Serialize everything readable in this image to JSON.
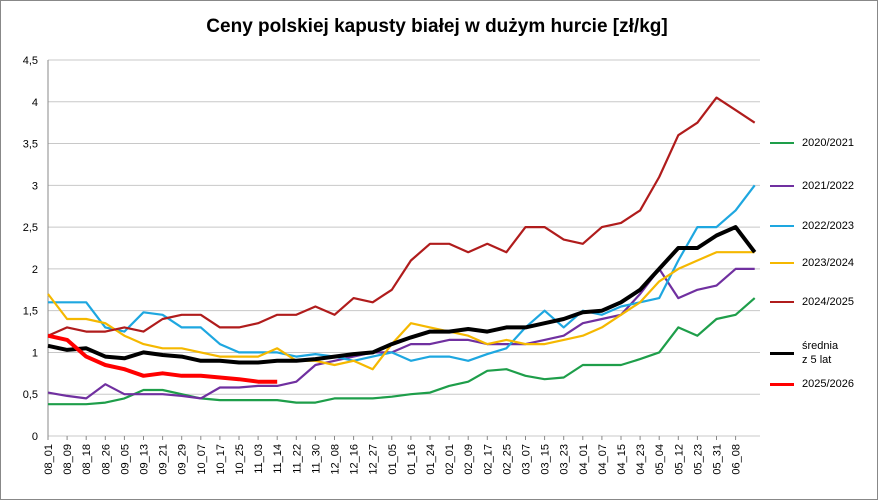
{
  "chart_data": {
    "type": "line",
    "title": "Ceny polskiej kapusty białej w dużym hurcie [zł/kg]",
    "categories": [
      "08_01",
      "08_09",
      "08_18",
      "08_26",
      "09_05",
      "09_13",
      "09_21",
      "09_29",
      "10_07",
      "10_17",
      "10_25",
      "11_03",
      "11_14",
      "11_22",
      "11_30",
      "12_08",
      "12_16",
      "12_27",
      "01_05",
      "01_16",
      "01_24",
      "02_01",
      "02_09",
      "02_17",
      "02_25",
      "03_07",
      "03_15",
      "03_23",
      "04_01",
      "04_07",
      "04_15",
      "04_23",
      "05_04",
      "05_12",
      "05_23",
      "05_31",
      "06_08",
      null
    ],
    "ylim": [
      0,
      4.5
    ],
    "yticks": [
      0,
      {
        "value": 0.5,
        "label": "0,5"
      },
      1,
      {
        "value": 1.5,
        "label": "1,5"
      },
      2,
      {
        "value": 2.5,
        "label": "2,5"
      },
      3,
      {
        "value": 3.5,
        "label": "3,5"
      },
      4,
      {
        "value": 4.5,
        "label": "4,5"
      }
    ],
    "grid": true,
    "series": [
      {
        "name": "2020/2021",
        "color": "#1e9e4a",
        "values": [
          0.38,
          0.38,
          0.38,
          0.4,
          0.45,
          0.55,
          0.55,
          0.5,
          0.45,
          0.43,
          0.43,
          0.43,
          0.43,
          0.4,
          0.4,
          0.45,
          0.45,
          0.45,
          0.47,
          0.5,
          0.52,
          0.6,
          0.65,
          0.78,
          0.8,
          0.72,
          0.68,
          0.7,
          0.85,
          0.85,
          0.85,
          0.92,
          1.0,
          1.3,
          1.2,
          1.4,
          1.45,
          1.65
        ]
      },
      {
        "name": "2021/2022",
        "color": "#7030a0",
        "values": [
          0.52,
          0.48,
          0.45,
          0.62,
          0.5,
          0.5,
          0.5,
          0.48,
          0.45,
          0.58,
          0.58,
          0.6,
          0.6,
          0.65,
          0.85,
          0.9,
          0.95,
          1.0,
          1.0,
          1.1,
          1.1,
          1.15,
          1.15,
          1.1,
          1.1,
          1.1,
          1.15,
          1.2,
          1.35,
          1.4,
          1.45,
          1.7,
          2.0,
          1.65,
          1.75,
          1.8,
          2.0,
          2.0
        ]
      },
      {
        "name": "2022/2023",
        "color": "#1ea7e0",
        "values": [
          1.6,
          1.6,
          1.6,
          1.3,
          1.25,
          1.48,
          1.45,
          1.3,
          1.3,
          1.1,
          1.0,
          1.0,
          1.0,
          0.95,
          0.98,
          0.95,
          0.9,
          0.95,
          1.0,
          0.9,
          0.95,
          0.95,
          0.9,
          0.98,
          1.05,
          1.3,
          1.5,
          1.3,
          1.5,
          1.45,
          1.55,
          1.6,
          1.65,
          2.1,
          2.5,
          2.5,
          2.7,
          3.0
        ]
      },
      {
        "name": "2023/2024",
        "color": "#f5b800",
        "values": [
          1.7,
          1.4,
          1.4,
          1.35,
          1.2,
          1.1,
          1.05,
          1.05,
          1.0,
          0.95,
          0.95,
          0.95,
          1.05,
          0.9,
          0.9,
          0.85,
          0.9,
          0.8,
          1.1,
          1.35,
          1.3,
          1.25,
          1.2,
          1.1,
          1.15,
          1.1,
          1.1,
          1.15,
          1.2,
          1.3,
          1.45,
          1.6,
          1.85,
          2.0,
          2.1,
          2.2,
          2.2,
          2.2
        ]
      },
      {
        "name": "2024/2025",
        "color": "#b01c1c",
        "values": [
          1.2,
          1.3,
          1.25,
          1.25,
          1.3,
          1.25,
          1.4,
          1.45,
          1.45,
          1.3,
          1.3,
          1.35,
          1.45,
          1.45,
          1.55,
          1.45,
          1.65,
          1.6,
          1.75,
          2.1,
          2.3,
          2.3,
          2.2,
          2.3,
          2.2,
          2.5,
          2.5,
          2.35,
          2.3,
          2.5,
          2.55,
          2.7,
          3.1,
          3.6,
          3.75,
          4.05,
          3.9,
          3.75
        ]
      },
      {
        "name": "średnia z 5 lat",
        "color": "#000000",
        "values": [
          1.08,
          1.03,
          1.05,
          0.95,
          0.93,
          1.0,
          0.97,
          0.95,
          0.9,
          0.9,
          0.88,
          0.88,
          0.9,
          0.9,
          0.92,
          0.95,
          0.98,
          1.0,
          1.1,
          1.18,
          1.25,
          1.25,
          1.28,
          1.25,
          1.3,
          1.3,
          1.35,
          1.4,
          1.48,
          1.5,
          1.6,
          1.75,
          2.0,
          2.25,
          2.25,
          2.4,
          2.5,
          2.2
        ]
      },
      {
        "name": "2025/2026",
        "color": "#ff0000",
        "values": [
          1.2,
          1.15,
          0.95,
          0.85,
          0.8,
          0.72,
          0.75,
          0.72,
          0.72,
          0.7,
          0.68,
          0.65,
          0.65,
          null,
          null,
          null,
          null,
          null,
          null,
          null,
          null,
          null,
          null,
          null,
          null,
          null,
          null,
          null,
          null,
          null,
          null,
          null,
          null,
          null,
          null,
          null,
          null,
          null
        ]
      }
    ]
  }
}
